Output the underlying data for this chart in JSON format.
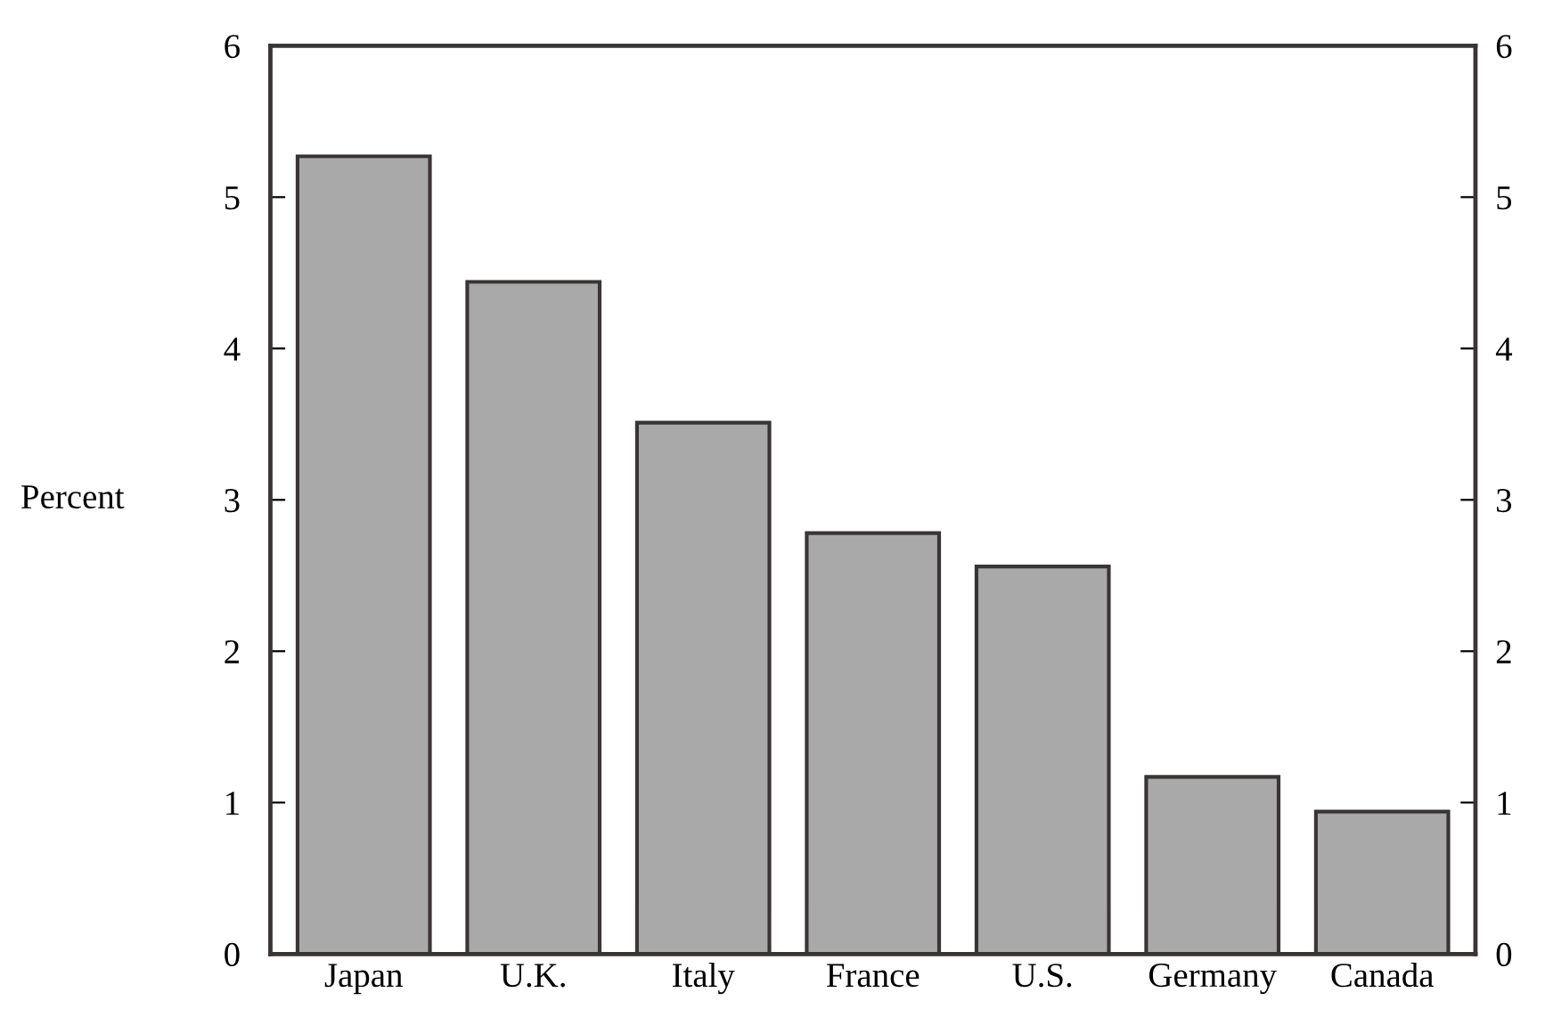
{
  "chart_data": {
    "type": "bar",
    "ylabel": "Percent",
    "categories": [
      "Japan",
      "U.K.",
      "Italy",
      "France",
      "U.S.",
      "Germany",
      "Canada"
    ],
    "values": [
      5.27,
      4.44,
      3.51,
      2.78,
      2.56,
      1.17,
      0.94
    ],
    "color": "#a9a9a9",
    "ylim": [
      0,
      6
    ],
    "yticks": [
      0,
      1,
      2,
      3,
      4,
      5,
      6
    ],
    "y2lim": [
      0,
      6
    ],
    "y2ticks": [
      0,
      1,
      2,
      3,
      4,
      5,
      6
    ],
    "grid": false
  }
}
